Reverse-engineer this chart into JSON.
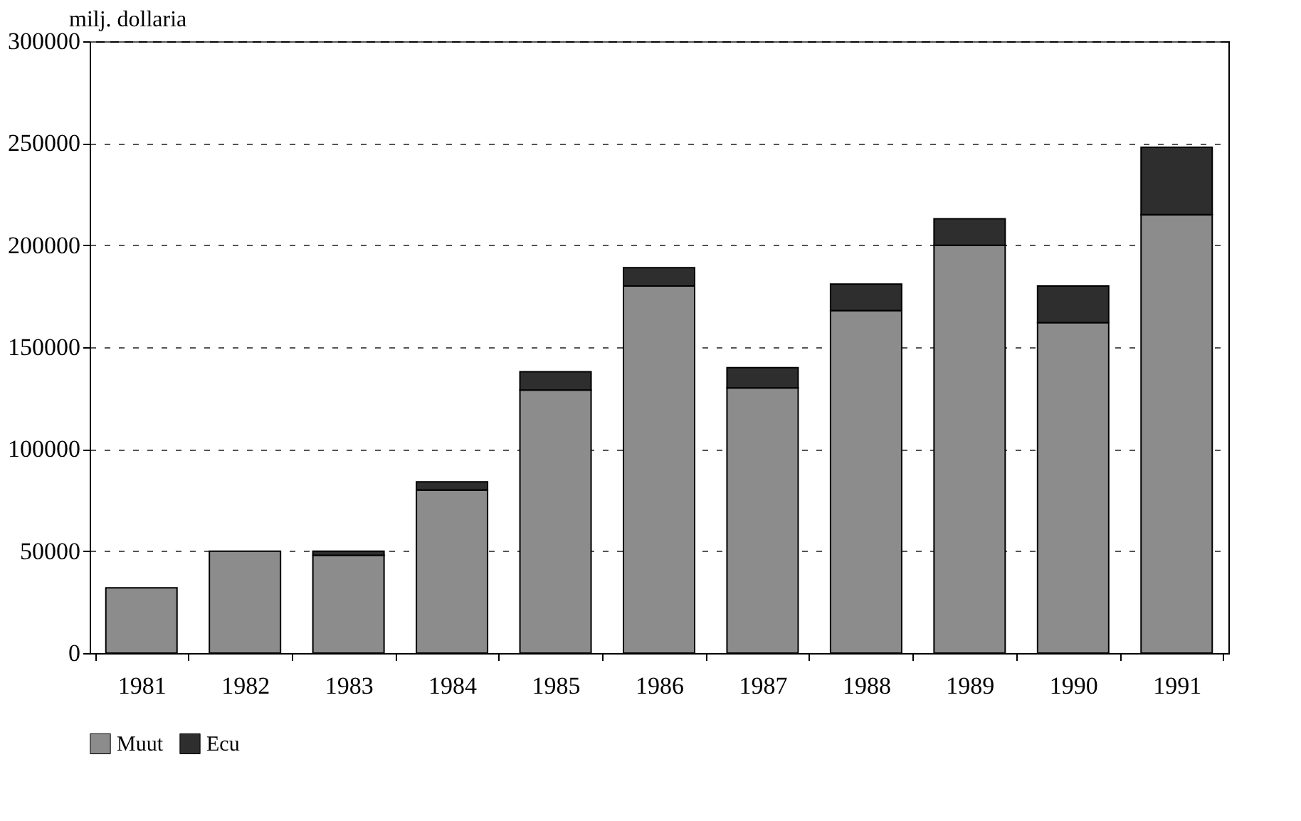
{
  "chart_data": {
    "type": "bar",
    "stacked": true,
    "ylabel": "milj. dollaria",
    "categories": [
      "1981",
      "1982",
      "1983",
      "1984",
      "1985",
      "1986",
      "1987",
      "1988",
      "1989",
      "1990",
      "1991"
    ],
    "series": [
      {
        "name": "Muut",
        "color": "#8c8c8c",
        "values": [
          32000,
          50000,
          48000,
          80000,
          129000,
          180000,
          130000,
          168000,
          200000,
          162000,
          215000
        ]
      },
      {
        "name": "Ecu",
        "color": "#2e2e2e",
        "values": [
          null,
          null,
          2000,
          4000,
          9000,
          9000,
          10000,
          13000,
          13000,
          18000,
          33000
        ]
      }
    ],
    "ylim": [
      0,
      300000
    ],
    "yticks": [
      0,
      50000,
      100000,
      150000,
      200000,
      250000,
      300000
    ],
    "grid": "y",
    "legend": "bottom left"
  }
}
